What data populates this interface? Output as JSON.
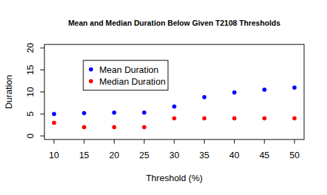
{
  "chart_data": {
    "type": "scatter",
    "title": "Mean and Median Duration Below Given T2108 Thresholds",
    "x_label": "Threshold (%)",
    "y_label": "Duration",
    "x": [
      10,
      15,
      20,
      25,
      30,
      35,
      40,
      45,
      50
    ],
    "series": [
      {
        "name": "Mean Duration",
        "color": "#0000ff",
        "marker": "circle",
        "values": [
          5,
          5.2,
          5.3,
          5.3,
          6.7,
          8.8,
          9.9,
          10.5,
          11
        ]
      },
      {
        "name": "Median Duration",
        "color": "#ff0000",
        "marker": "circle",
        "values": [
          3,
          2,
          2,
          2,
          4,
          4,
          4,
          4,
          4
        ]
      }
    ],
    "xlim": [
      8.4,
      51.6
    ],
    "xticks": [
      10,
      15,
      20,
      25,
      30,
      35,
      40,
      45,
      50
    ],
    "ylim": [
      -0.8,
      20.8
    ],
    "yticks": [
      0,
      5,
      10,
      15,
      20
    ],
    "legend": "topleft",
    "grid": false
  }
}
